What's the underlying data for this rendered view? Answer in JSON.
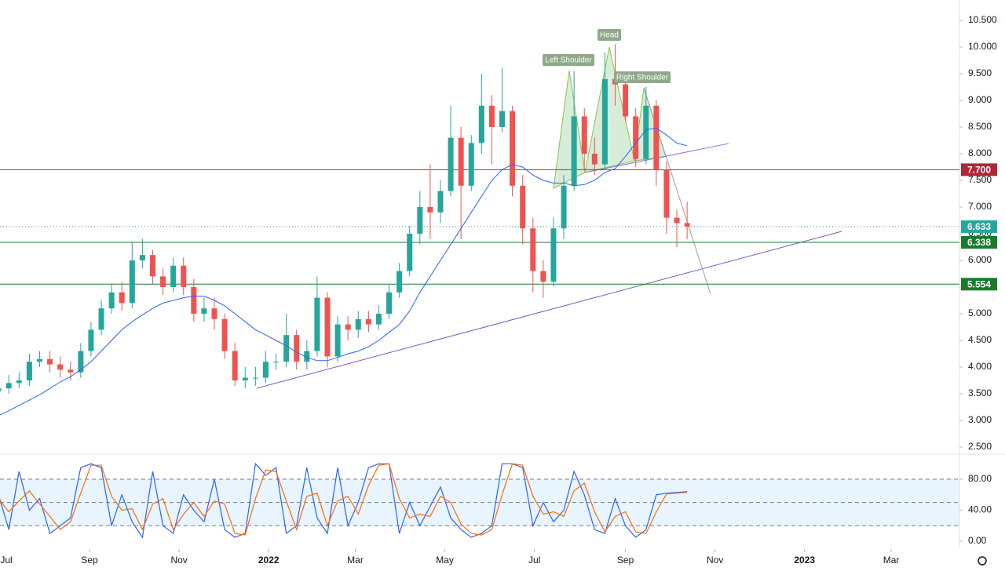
{
  "chart_data": {
    "type": "candlestick",
    "x": [
      0,
      7,
      14,
      21,
      28,
      35,
      42,
      49,
      56,
      63,
      70,
      77,
      84,
      91,
      98,
      105,
      112,
      119,
      126,
      133,
      140,
      147,
      154,
      161,
      168,
      175,
      182,
      189,
      196,
      203,
      210,
      217,
      224,
      231,
      238,
      245,
      252,
      259,
      266,
      273,
      280,
      287,
      294,
      301,
      308,
      315,
      322,
      329,
      336,
      343,
      350,
      357,
      364,
      371,
      378,
      385,
      392,
      399,
      406,
      413,
      420,
      427,
      434,
      441,
      448,
      455,
      462,
      469
    ],
    "open": [
      3.55,
      3.6,
      3.7,
      3.75,
      4.1,
      4.15,
      4.05,
      3.95,
      3.9,
      4.3,
      4.7,
      5.1,
      5.4,
      5.2,
      6.0,
      6.1,
      5.7,
      5.5,
      5.9,
      5.5,
      5.0,
      5.1,
      4.9,
      4.3,
      3.75,
      3.8,
      3.8,
      4.1,
      4.1,
      4.6,
      4.1,
      4.3,
      5.3,
      4.2,
      4.8,
      4.7,
      4.9,
      4.8,
      5.0,
      5.4,
      5.8,
      6.5,
      7.0,
      6.9,
      7.3,
      8.3,
      7.4,
      8.2,
      8.9,
      8.5,
      8.8,
      7.4,
      6.6,
      5.8,
      5.6,
      6.6,
      7.4,
      8.7,
      8.0,
      7.8,
      9.4,
      9.3,
      8.7,
      7.9,
      8.9,
      7.7,
      6.8,
      6.7
    ],
    "high": [
      3.75,
      3.85,
      3.9,
      4.25,
      4.3,
      4.3,
      4.2,
      4.1,
      4.45,
      4.85,
      5.25,
      5.55,
      5.6,
      6.35,
      6.4,
      6.2,
      5.85,
      6.05,
      6.05,
      5.65,
      5.3,
      5.3,
      5.0,
      4.45,
      4.0,
      4.0,
      4.3,
      4.25,
      5.0,
      4.7,
      4.5,
      5.7,
      5.4,
      4.95,
      4.95,
      5.05,
      5.05,
      5.15,
      5.55,
      5.95,
      6.65,
      7.3,
      7.8,
      7.5,
      8.9,
      8.5,
      8.35,
      9.5,
      9.1,
      9.6,
      8.9,
      7.6,
      6.8,
      6.0,
      6.8,
      7.6,
      9.55,
      8.85,
      8.3,
      9.9,
      10.05,
      9.45,
      8.85,
      9.25,
      9.0,
      7.85,
      6.95,
      7.1
    ],
    "low": [
      3.45,
      3.5,
      3.6,
      3.65,
      4.0,
      3.9,
      3.8,
      3.75,
      3.8,
      4.2,
      4.6,
      5.0,
      5.05,
      5.1,
      5.85,
      5.55,
      5.35,
      5.4,
      5.35,
      4.85,
      4.85,
      4.7,
      4.15,
      3.65,
      3.6,
      3.65,
      3.7,
      3.95,
      4.0,
      3.95,
      3.95,
      4.2,
      4.0,
      4.1,
      4.5,
      4.55,
      4.65,
      4.7,
      4.9,
      5.3,
      5.7,
      6.3,
      6.4,
      6.7,
      7.2,
      6.4,
      7.3,
      8.0,
      7.8,
      8.4,
      7.2,
      6.3,
      5.4,
      5.3,
      5.5,
      6.4,
      7.3,
      7.7,
      7.6,
      7.7,
      8.9,
      8.6,
      7.75,
      7.8,
      7.4,
      6.5,
      6.25,
      6.4
    ],
    "close": [
      3.6,
      3.7,
      3.75,
      4.1,
      4.15,
      4.05,
      3.95,
      3.9,
      4.3,
      4.7,
      5.1,
      5.4,
      5.2,
      6.0,
      6.1,
      5.7,
      5.5,
      5.9,
      5.5,
      5.0,
      5.1,
      4.9,
      4.3,
      3.75,
      3.8,
      3.8,
      4.1,
      4.1,
      4.6,
      4.1,
      4.3,
      5.3,
      4.2,
      4.8,
      4.7,
      4.9,
      4.8,
      5.0,
      5.4,
      5.8,
      6.5,
      7.0,
      6.9,
      7.3,
      8.3,
      7.4,
      8.2,
      8.9,
      8.5,
      8.8,
      7.4,
      6.6,
      5.8,
      5.6,
      6.6,
      7.4,
      8.7,
      8.0,
      7.8,
      9.4,
      9.3,
      8.7,
      7.9,
      8.9,
      7.7,
      6.8,
      6.7,
      6.633
    ],
    "up_color": "#26a69a",
    "down_color": "#ef5350",
    "ma": {
      "color": "#2962ff",
      "values": [
        3.09,
        3.18,
        3.28,
        3.38,
        3.48,
        3.6,
        3.72,
        3.82,
        3.95,
        4.1,
        4.3,
        4.5,
        4.7,
        4.85,
        4.98,
        5.1,
        5.2,
        5.25,
        5.3,
        5.33,
        5.33,
        5.25,
        5.15,
        5.0,
        4.85,
        4.7,
        4.6,
        4.5,
        4.4,
        4.28,
        4.18,
        4.12,
        4.12,
        4.18,
        4.25,
        4.3,
        4.38,
        4.5,
        4.65,
        4.8,
        5.05,
        5.4,
        5.7,
        6.0,
        6.3,
        6.6,
        6.9,
        7.2,
        7.5,
        7.7,
        7.8,
        7.75,
        7.6,
        7.5,
        7.45,
        7.45,
        7.4,
        7.42,
        7.5,
        7.65,
        7.72,
        7.95,
        8.2,
        8.45,
        8.48,
        8.35,
        8.2,
        8.15
      ]
    },
    "xlim": [
      1,
      654.5
    ],
    "xticks": [
      {
        "value": 0,
        "label": "Jul"
      },
      {
        "value": 62,
        "label": "Sep"
      },
      {
        "value": 123,
        "label": "Nov"
      },
      {
        "value": 184,
        "label": "2022"
      },
      {
        "value": 243,
        "label": "Mar"
      },
      {
        "value": 304,
        "label": "May"
      },
      {
        "value": 365,
        "label": "Jul"
      },
      {
        "value": 427,
        "label": "Sep"
      },
      {
        "value": 488,
        "label": "Nov"
      },
      {
        "value": 549,
        "label": "2023"
      },
      {
        "value": 608,
        "label": "Mar"
      }
    ],
    "ylim": [
      2.382,
      10.882
    ],
    "yticks": [
      {
        "value": 2.5,
        "label": "2.500"
      },
      {
        "value": 3,
        "label": "3.000"
      },
      {
        "value": 3.5,
        "label": "3.500"
      },
      {
        "value": 4,
        "label": "4.000"
      },
      {
        "value": 4.5,
        "label": "4.500"
      },
      {
        "value": 5,
        "label": "5.000"
      },
      {
        "value": 5.5,
        "label": "5.500"
      },
      {
        "value": 6,
        "label": "6.000"
      },
      {
        "value": 6.5,
        "label": "6.500"
      },
      {
        "value": 7,
        "label": "7.000"
      },
      {
        "value": 7.5,
        "label": "7.500"
      },
      {
        "value": 8,
        "label": "8.000"
      },
      {
        "value": 8.5,
        "label": "8.500"
      },
      {
        "value": 9,
        "label": "9.000"
      },
      {
        "value": 9.5,
        "label": "9.500"
      },
      {
        "value": 10,
        "label": "10.000"
      },
      {
        "value": 10.5,
        "label": "10.500"
      }
    ],
    "levels": [
      {
        "value": 7.7,
        "label": "7.700",
        "color": "#b2263a",
        "style": "solid"
      },
      {
        "value": 6.633,
        "label": "6.633",
        "color": "#26a69a",
        "style": "dotted"
      },
      {
        "value": 6.338,
        "label": "6.338",
        "color": "#1b7a2c",
        "style": "solid"
      },
      {
        "value": 5.554,
        "label": "5.554",
        "color": "#1b7a2c",
        "style": "solid"
      }
    ],
    "annotations": [
      "Left Shoulder",
      "Head",
      "Right Shoulder"
    ],
    "oscillator": {
      "type": "line",
      "ylim": [
        -10.1,
        111.4
      ],
      "yticks": [
        {
          "value": 0,
          "label": "0.00"
        },
        {
          "value": 40,
          "label": "40.00"
        },
        {
          "value": 80,
          "label": "80.00"
        }
      ],
      "levels": [
        20,
        50,
        80
      ],
      "series": [
        {
          "color": "#2962ff",
          "values": [
            60,
            15,
            90,
            40,
            55,
            10,
            20,
            30,
            95,
            100,
            95,
            20,
            60,
            25,
            5,
            90,
            20,
            10,
            60,
            40,
            25,
            80,
            15,
            5,
            10,
            100,
            85,
            95,
            10,
            20,
            95,
            30,
            10,
            95,
            20,
            50,
            95,
            100,
            100,
            10,
            50,
            20,
            45,
            70,
            30,
            15,
            5,
            10,
            20,
            100,
            100,
            95,
            20,
            50,
            25,
            40,
            90,
            60,
            15,
            10,
            55,
            20,
            5,
            15,
            60,
            62,
            63,
            64
          ]
        },
        {
          "color": "#ff6d00",
          "values": [
            55,
            38,
            52,
            65,
            48,
            32,
            15,
            25,
            62,
            98,
            98,
            58,
            40,
            42,
            15,
            48,
            55,
            15,
            35,
            50,
            32,
            52,
            48,
            10,
            8,
            55,
            92,
            90,
            52,
            15,
            58,
            62,
            20,
            52,
            58,
            35,
            72,
            98,
            100,
            55,
            30,
            35,
            32,
            58,
            50,
            22,
            10,
            8,
            15,
            60,
            100,
            98,
            58,
            35,
            38,
            32,
            65,
            75,
            38,
            12,
            32,
            38,
            12,
            10,
            38,
            61,
            62,
            63
          ]
        }
      ]
    }
  }
}
